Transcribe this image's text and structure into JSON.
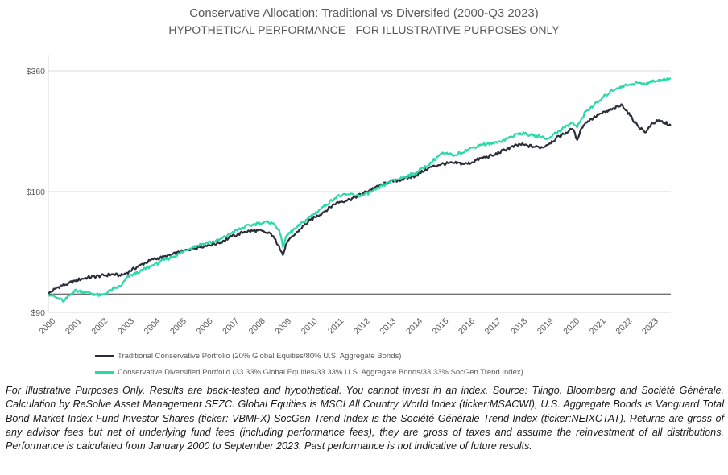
{
  "chart_data": {
    "type": "line",
    "title": "Conservative Allocation: Traditional vs Diversifed (2000-Q3 2023)",
    "subtitle": "HYPOTHETICAL PERFORMANCE - FOR ILLUSTRATIVE PURPOSES ONLY",
    "xlabel": "",
    "ylabel": "",
    "xlim": [
      2000.0,
      2023.75
    ],
    "ylim": [
      90,
      380
    ],
    "y_ticks": [
      {
        "value": 90,
        "label": "$90"
      },
      {
        "value": 180,
        "label": "$180"
      },
      {
        "value": 360,
        "label": "$360"
      }
    ],
    "x_ticks": [
      "2000",
      "2001",
      "2002",
      "2003",
      "2004",
      "2005",
      "2006",
      "2007",
      "2008",
      "2009",
      "2010",
      "2011",
      "2012",
      "2013",
      "2014",
      "2015",
      "2016",
      "2017",
      "2018",
      "2019",
      "2020",
      "2021",
      "2022",
      "2023"
    ],
    "reference_line": 100,
    "grid": "horizontal",
    "legend_position": "bottom",
    "series": [
      {
        "name": "Traditional Conservative Portfolio (20% Global Equities/80% U.S. Aggregate Bonds)",
        "color": "#2b2e3a",
        "points": [
          [
            2000.0,
            100
          ],
          [
            2000.25,
            103
          ],
          [
            2000.5,
            105
          ],
          [
            2000.75,
            106
          ],
          [
            2001.0,
            108
          ],
          [
            2001.5,
            110
          ],
          [
            2002.0,
            111
          ],
          [
            2002.5,
            112
          ],
          [
            2002.75,
            111
          ],
          [
            2003.0,
            113
          ],
          [
            2003.5,
            118
          ],
          [
            2004.0,
            122
          ],
          [
            2004.5,
            124
          ],
          [
            2005.0,
            127
          ],
          [
            2005.5,
            130
          ],
          [
            2006.0,
            132
          ],
          [
            2006.5,
            134
          ],
          [
            2007.0,
            139
          ],
          [
            2007.5,
            143
          ],
          [
            2008.0,
            144
          ],
          [
            2008.5,
            141
          ],
          [
            2008.8,
            132
          ],
          [
            2008.95,
            125
          ],
          [
            2009.1,
            134
          ],
          [
            2009.5,
            143
          ],
          [
            2010.0,
            153
          ],
          [
            2010.5,
            160
          ],
          [
            2011.0,
            169
          ],
          [
            2011.5,
            172
          ],
          [
            2012.0,
            178
          ],
          [
            2012.5,
            185
          ],
          [
            2013.0,
            190
          ],
          [
            2013.5,
            193
          ],
          [
            2014.0,
            197
          ],
          [
            2014.5,
            206
          ],
          [
            2015.0,
            211
          ],
          [
            2015.5,
            212
          ],
          [
            2016.0,
            211
          ],
          [
            2016.5,
            218
          ],
          [
            2017.0,
            222
          ],
          [
            2017.5,
            230
          ],
          [
            2018.0,
            236
          ],
          [
            2018.5,
            233
          ],
          [
            2018.9,
            232
          ],
          [
            2019.0,
            235
          ],
          [
            2019.5,
            247
          ],
          [
            2020.0,
            258
          ],
          [
            2020.18,
            242
          ],
          [
            2020.3,
            256
          ],
          [
            2020.5,
            268
          ],
          [
            2021.0,
            280
          ],
          [
            2021.5,
            288
          ],
          [
            2021.9,
            296
          ],
          [
            2022.2,
            278
          ],
          [
            2022.5,
            262
          ],
          [
            2022.8,
            253
          ],
          [
            2023.0,
            265
          ],
          [
            2023.25,
            270
          ],
          [
            2023.5,
            268
          ],
          [
            2023.75,
            263
          ]
        ]
      },
      {
        "name": "Conservative Diversified Portfolio (33.33% Global Equities/33.33% U.S. Aggregate Bonds/33.33% SocGen Trend Index)",
        "color": "#29d9a7",
        "points": [
          [
            2000.0,
            100
          ],
          [
            2000.3,
            98
          ],
          [
            2000.6,
            96
          ],
          [
            2001.0,
            102
          ],
          [
            2001.5,
            101
          ],
          [
            2002.0,
            99
          ],
          [
            2002.5,
            103
          ],
          [
            2002.8,
            105
          ],
          [
            2003.0,
            110
          ],
          [
            2003.5,
            114
          ],
          [
            2004.0,
            118
          ],
          [
            2004.5,
            122
          ],
          [
            2005.0,
            126
          ],
          [
            2005.5,
            131
          ],
          [
            2006.0,
            134
          ],
          [
            2006.5,
            136
          ],
          [
            2007.0,
            142
          ],
          [
            2007.5,
            147
          ],
          [
            2008.0,
            150
          ],
          [
            2008.5,
            151
          ],
          [
            2008.8,
            145
          ],
          [
            2008.95,
            131
          ],
          [
            2009.1,
            140
          ],
          [
            2009.5,
            147
          ],
          [
            2010.0,
            156
          ],
          [
            2010.5,
            165
          ],
          [
            2011.0,
            175
          ],
          [
            2011.5,
            177
          ],
          [
            2012.0,
            176
          ],
          [
            2012.5,
            182
          ],
          [
            2013.0,
            190
          ],
          [
            2013.5,
            195
          ],
          [
            2014.0,
            200
          ],
          [
            2014.5,
            210
          ],
          [
            2015.0,
            224
          ],
          [
            2015.5,
            222
          ],
          [
            2016.0,
            229
          ],
          [
            2016.5,
            236
          ],
          [
            2017.0,
            237
          ],
          [
            2017.5,
            244
          ],
          [
            2018.0,
            252
          ],
          [
            2018.5,
            248
          ],
          [
            2018.9,
            246
          ],
          [
            2019.0,
            243
          ],
          [
            2019.5,
            255
          ],
          [
            2020.0,
            268
          ],
          [
            2020.18,
            260
          ],
          [
            2020.3,
            270
          ],
          [
            2020.5,
            285
          ],
          [
            2021.0,
            302
          ],
          [
            2021.5,
            322
          ],
          [
            2021.9,
            330
          ],
          [
            2022.2,
            333
          ],
          [
            2022.5,
            336
          ],
          [
            2022.8,
            333
          ],
          [
            2023.0,
            341
          ],
          [
            2023.25,
            339
          ],
          [
            2023.5,
            344
          ],
          [
            2023.75,
            345
          ]
        ]
      }
    ]
  },
  "legend": {
    "items": [
      {
        "label": "Traditional Conservative Portfolio (20% Global Equities/80% U.S. Aggregate Bonds)",
        "color": "#2b2e3a"
      },
      {
        "label": "Conservative Diversified Portfolio (33.33% Global Equities/33.33% U.S. Aggregate Bonds/33.33% SocGen Trend Index)",
        "color": "#29d9a7"
      }
    ]
  },
  "footnote": "For Illustrative Purposes Only. Results are back-tested and hypothetical. You cannot invest in an index. Source: Tiingo, Bloomberg and Société Générale. Calculation by ReSolve Asset Management SEZC. Global Equities is MSCI All Country World Index (ticker:MSACWI), U.S. Aggregate Bonds is Vanguard Total Bond Market Index Fund Investor Shares (ticker: VBMFX) SocGen Trend Index is the Société Générale Trend Index (ticker:NEIXCTAT). Returns are gross of any advisor fees but net of underlying fund fees (including performance fees), they are gross of taxes and assume the reinvestment of all distributions. Performance is calculated from January 2000 to September 2023. Past performance is not indicative of future results."
}
